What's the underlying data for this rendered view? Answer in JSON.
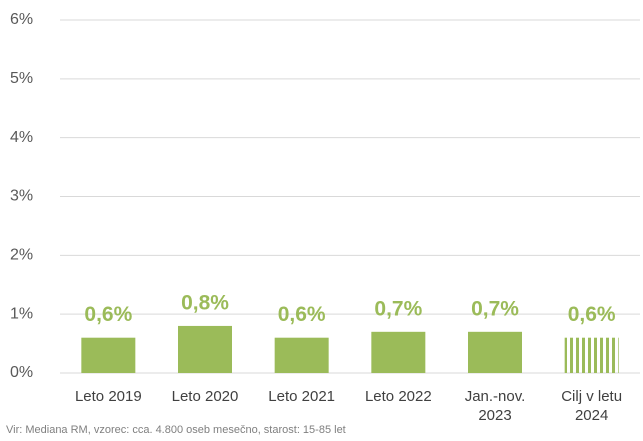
{
  "chart_data": {
    "type": "bar",
    "categories": [
      "Leto 2019",
      "Leto 2020",
      "Leto 2021",
      "Leto 2022",
      "Jan.-nov. 2023",
      "Cilj v letu 2024"
    ],
    "values": [
      0.6,
      0.8,
      0.6,
      0.7,
      0.7,
      0.6
    ],
    "value_labels": [
      "0,6%",
      "0,8%",
      "0,6%",
      "0,7%",
      "0,7%",
      "0,6%"
    ],
    "hatched": [
      false,
      false,
      false,
      false,
      false,
      true
    ],
    "color": "#9bbb59",
    "ylim": [
      0,
      6
    ],
    "yticks": [
      {
        "value": 0,
        "label": "0%"
      },
      {
        "value": 1,
        "label": "1%"
      },
      {
        "value": 2,
        "label": "2%"
      },
      {
        "value": 3,
        "label": "3%"
      },
      {
        "value": 4,
        "label": "4%"
      },
      {
        "value": 5,
        "label": "5%"
      },
      {
        "value": 6,
        "label": "6%"
      }
    ],
    "grid": true,
    "note": "Vir: Mediana RM, vzorec: cca. 4.800 oseb mesečno, starost: 15-85 let"
  }
}
